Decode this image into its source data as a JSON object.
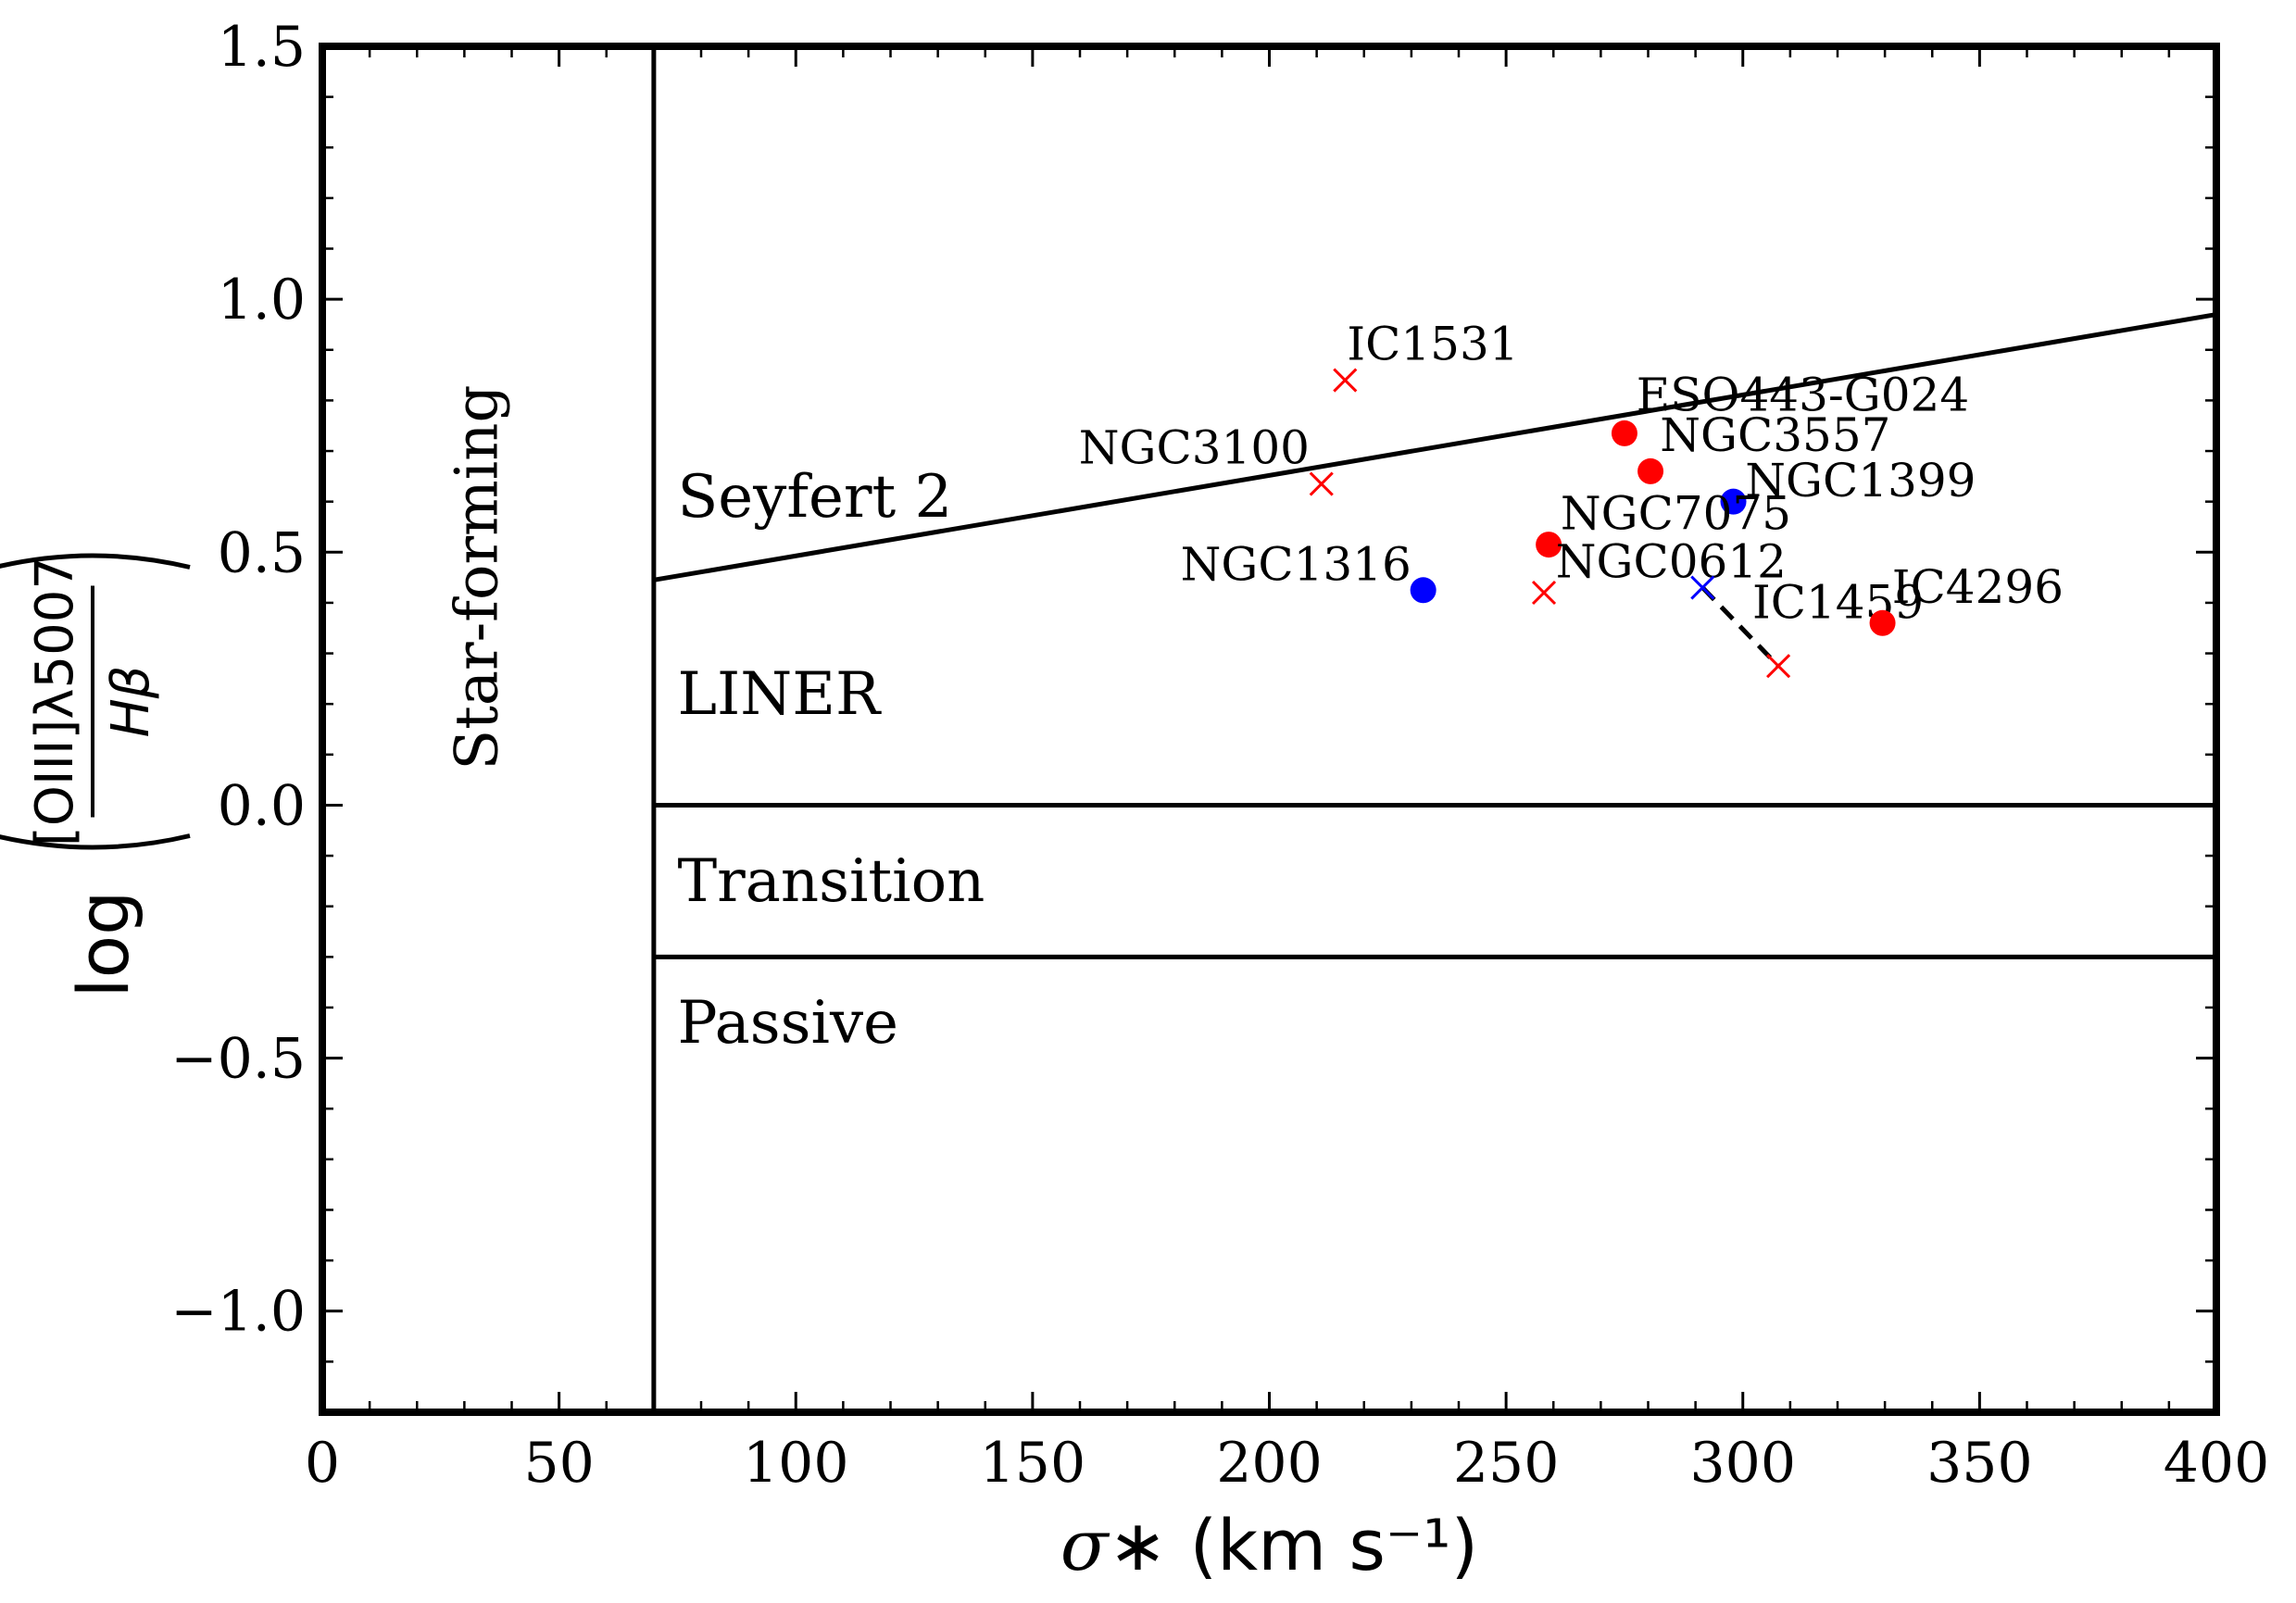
{
  "chart_data": {
    "type": "scatter",
    "title": "",
    "xlabel": "σ∗ (km s⁻¹)",
    "ylabel": "log([OIII]λ5007 / Hβ)",
    "xlim": [
      0,
      400
    ],
    "ylim": [
      -1.2,
      1.5
    ],
    "xticks": [
      0,
      50,
      100,
      150,
      200,
      250,
      300,
      350,
      400
    ],
    "xtick_labels": [
      "0",
      "50",
      "100",
      "150",
      "200",
      "250",
      "300",
      "350",
      "400"
    ],
    "yticks": [
      -1.0,
      -0.5,
      0.0,
      0.5,
      1.0,
      1.5
    ],
    "ytick_labels": [
      "−1.0",
      "−0.5",
      "0.0",
      "0.5",
      "1.0",
      "1.5"
    ],
    "grid": false,
    "regions": [
      {
        "label": "Star-forming",
        "x": 33,
        "y": 0.45,
        "rotate": true
      },
      {
        "label": "Seyfert 2",
        "x": 75,
        "y": 0.57
      },
      {
        "label": "LINER",
        "x": 75,
        "y": 0.18
      },
      {
        "label": "Transition",
        "x": 75,
        "y": -0.19
      },
      {
        "label": "Passive",
        "x": 75,
        "y": -0.47
      }
    ],
    "boundaries": [
      {
        "name": "vertical",
        "x": [
          70,
          70
        ],
        "y": [
          -1.2,
          1.5
        ]
      },
      {
        "name": "seyfert-liner",
        "x": [
          70,
          400
        ],
        "y": [
          0.445,
          0.97
        ]
      },
      {
        "name": "liner-transition",
        "x": [
          70,
          400
        ],
        "y": [
          0.0,
          0.0
        ]
      },
      {
        "name": "transition-passive",
        "x": [
          70,
          400
        ],
        "y": [
          -0.3,
          -0.3
        ]
      }
    ],
    "points": [
      {
        "label": "IC1531",
        "x": 216,
        "y": 0.84,
        "marker": "x",
        "color": "#ff0000",
        "label_dx": 0.4,
        "label_dy": 0.04,
        "anchor": "start"
      },
      {
        "label": "NGC3100",
        "x": 211,
        "y": 0.635,
        "marker": "x",
        "color": "#ff0000",
        "label_dx": -2.5,
        "label_dy": 0.04,
        "anchor": "end"
      },
      {
        "label": "ESO443-G024",
        "x": 275,
        "y": 0.735,
        "marker": "o",
        "color": "#ff0000",
        "label_dx": 2.5,
        "label_dy": 0.045,
        "anchor": "start"
      },
      {
        "label": "NGC3557",
        "x": 280.5,
        "y": 0.66,
        "marker": "o",
        "color": "#ff0000",
        "label_dx": 2,
        "label_dy": 0.04,
        "anchor": "start"
      },
      {
        "label": "NGC1399",
        "x": 298,
        "y": 0.6,
        "marker": "o",
        "color": "#0000ff",
        "label_dx": 2.5,
        "label_dy": 0.01,
        "anchor": "start"
      },
      {
        "label": "NGC7075",
        "x": 259,
        "y": 0.515,
        "marker": "o",
        "color": "#ff0000",
        "label_dx": 2.5,
        "label_dy": 0.03,
        "anchor": "start"
      },
      {
        "label": "NGC0612",
        "x": 258,
        "y": 0.42,
        "marker": "x",
        "color": "#ff0000",
        "label_dx": 2.5,
        "label_dy": 0.03,
        "anchor": "start"
      },
      {
        "label": "NGC1316",
        "x": 232.5,
        "y": 0.425,
        "marker": "o",
        "color": "#0000ff",
        "label_dx": -2.5,
        "label_dy": 0.02,
        "anchor": "end"
      },
      {
        "label": "IC1459",
        "x": 291.5,
        "y": 0.43,
        "marker": "x",
        "color": "#0000ff",
        "label_dx": 10.5,
        "label_dy": -0.06,
        "anchor": "start"
      },
      {
        "label": "IC4296",
        "x": 329.5,
        "y": 0.36,
        "marker": "o",
        "color": "#ff0000",
        "label_dx": 2,
        "label_dy": 0.04,
        "anchor": "start"
      },
      {
        "label": "",
        "x": 307.5,
        "y": 0.275,
        "marker": "x",
        "color": "#ff0000"
      }
    ],
    "connector": {
      "x": [
        291.5,
        307.5
      ],
      "y": [
        0.43,
        0.275
      ],
      "style": "dashed"
    }
  }
}
